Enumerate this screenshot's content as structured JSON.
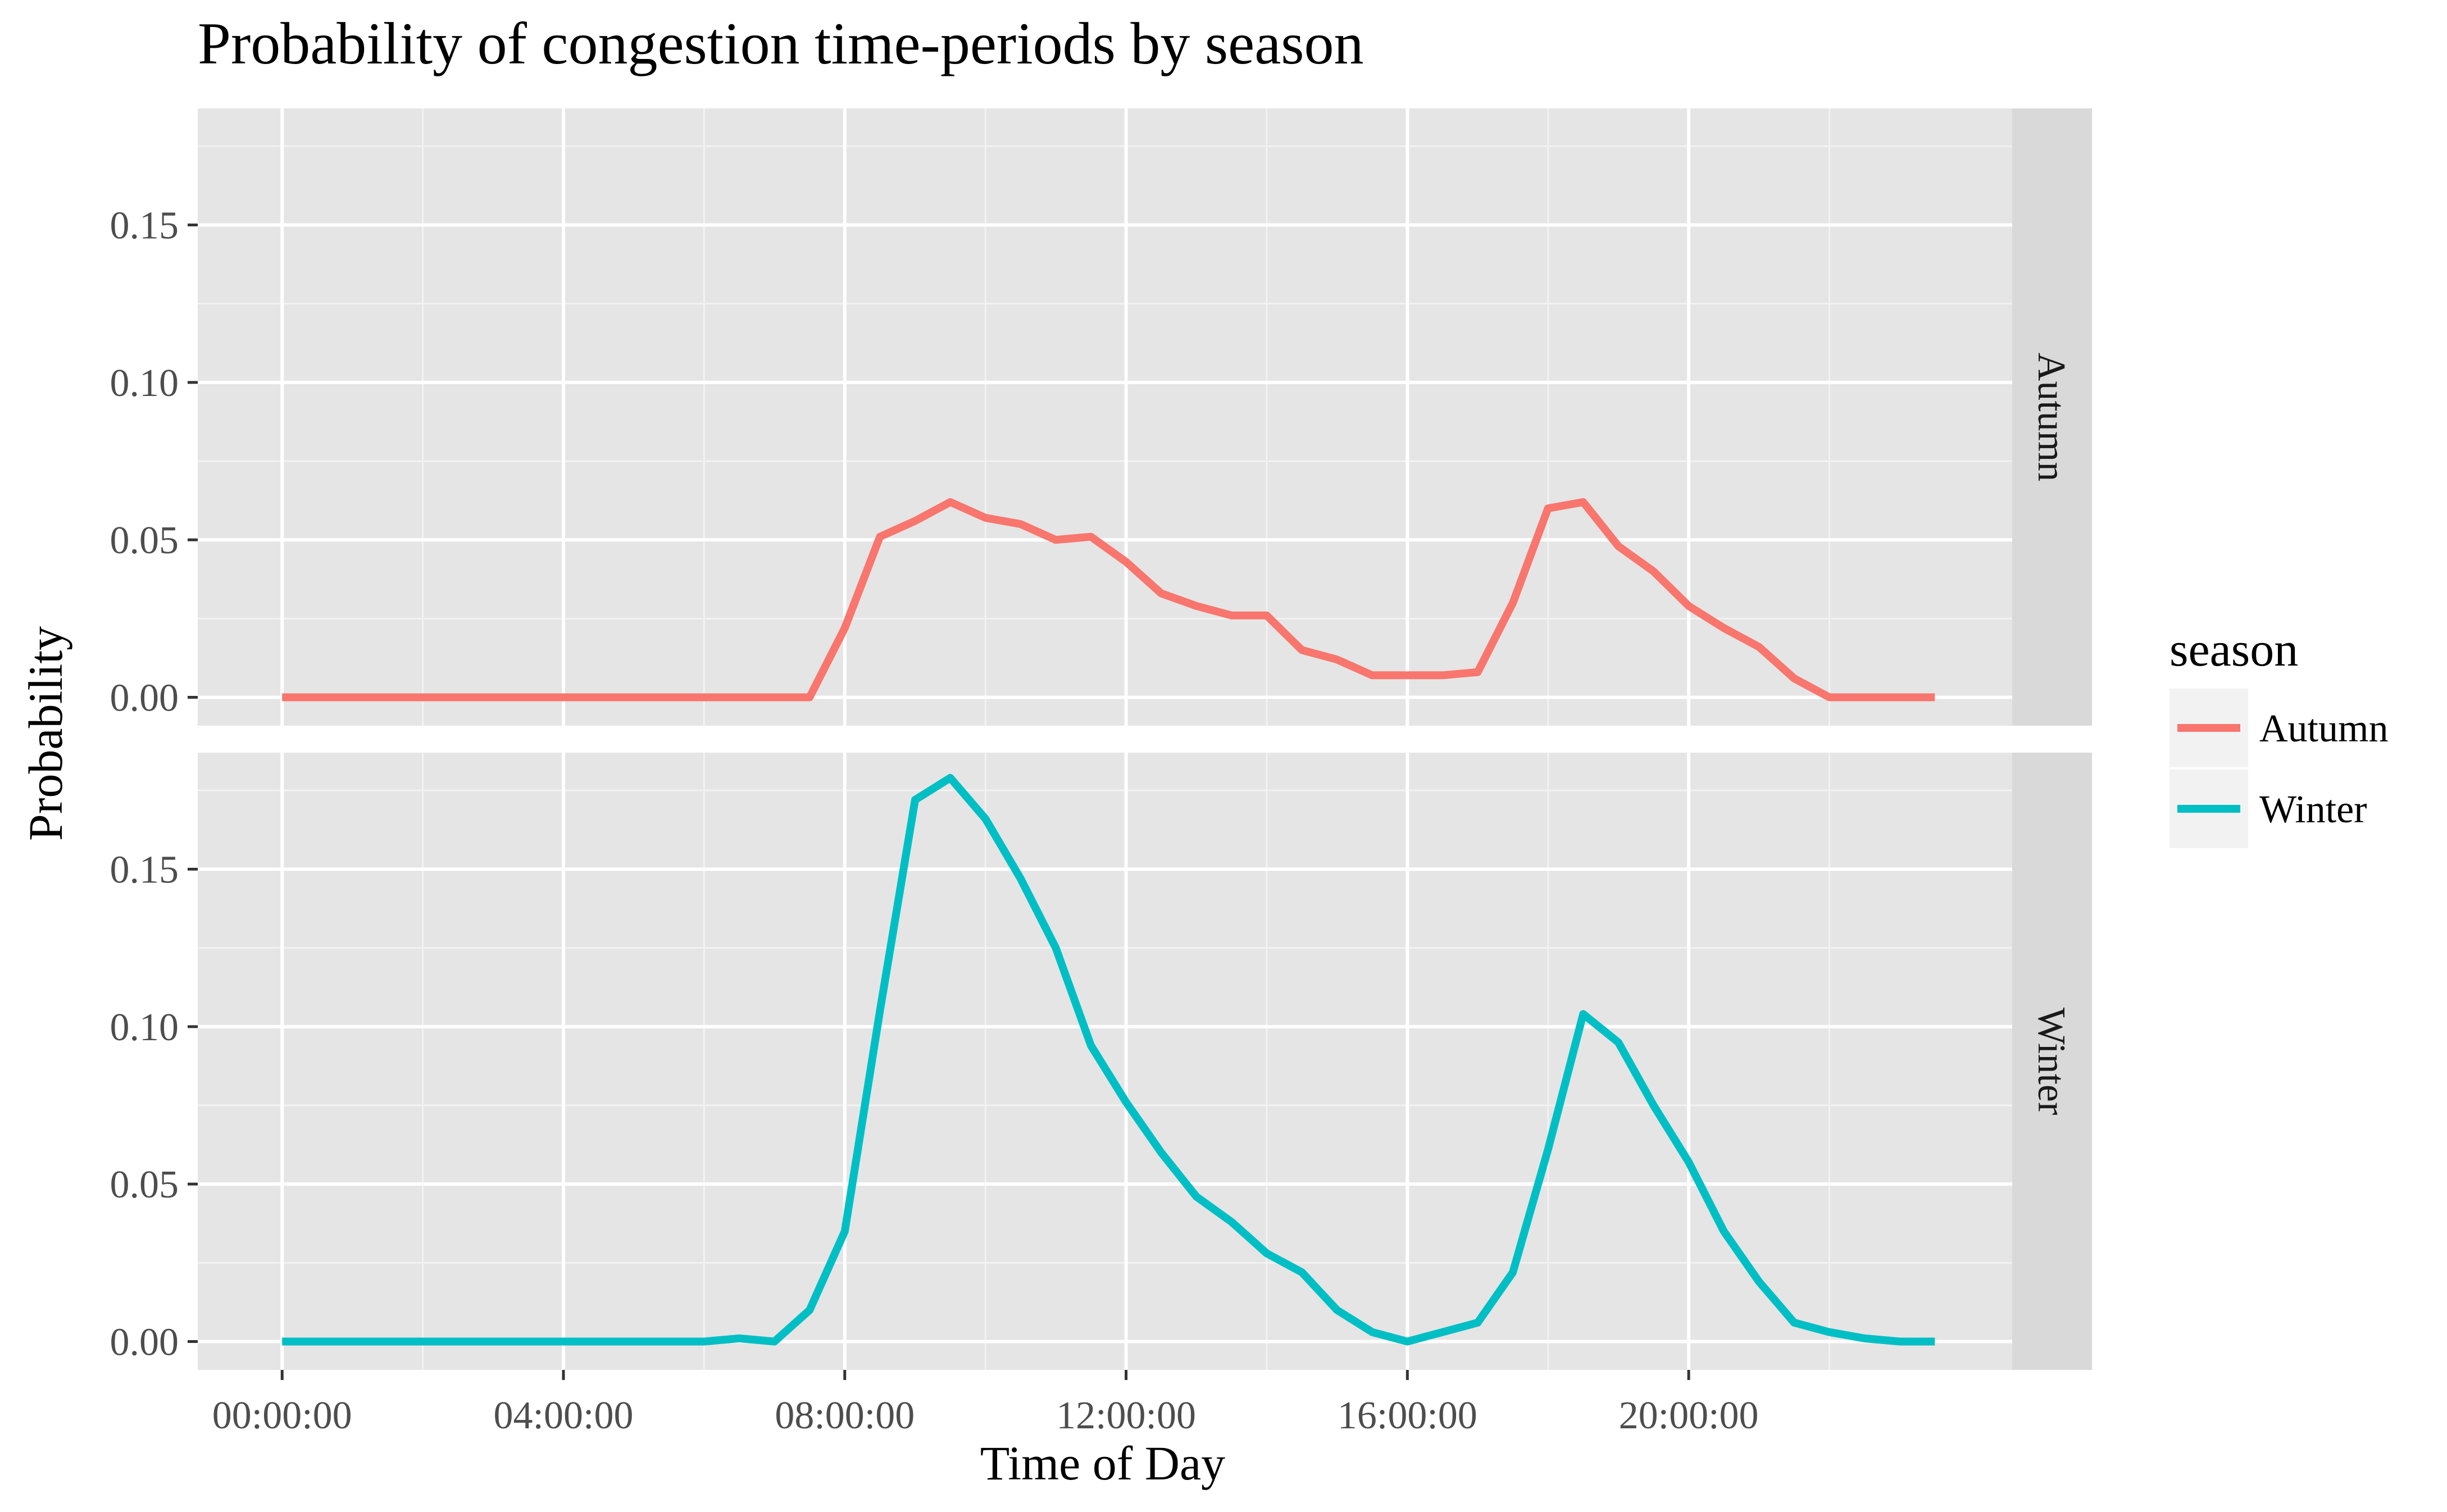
{
  "chart_data": {
    "type": "line",
    "title": "Probability of congestion time-periods by season",
    "xlabel": "Time of Day",
    "ylabel": "Probability",
    "x_tick_labels": [
      "00:00:00",
      "04:00:00",
      "08:00:00",
      "12:00:00",
      "16:00:00",
      "20:00:00"
    ],
    "x_ticks_hours": [
      0,
      4,
      8,
      12,
      16,
      20
    ],
    "y_tick_labels": [
      "0.00",
      "0.05",
      "0.10",
      "0.15"
    ],
    "y_ticks": [
      0,
      0.05,
      0.1,
      0.15
    ],
    "xlim_hours": [
      -1.2,
      24.6
    ],
    "ylim": [
      -0.009,
      0.187
    ],
    "grid": true,
    "legend_title": "season",
    "legend_position": "right",
    "facets": [
      {
        "name": "Autumn",
        "color": "#F8766D"
      },
      {
        "name": "Winter",
        "color": "#00BFC4"
      }
    ],
    "x_hours": [
      0,
      0.5,
      1,
      1.5,
      2,
      2.5,
      3,
      3.5,
      4,
      4.5,
      5,
      5.5,
      6,
      6.5,
      7,
      7.5,
      8,
      8.5,
      9,
      9.5,
      10,
      10.5,
      11,
      11.5,
      12,
      12.5,
      13,
      13.5,
      14,
      14.5,
      15,
      15.5,
      16,
      16.5,
      17,
      17.5,
      18,
      18.5,
      19,
      19.5,
      20,
      20.5,
      21,
      21.5,
      22,
      22.5,
      23,
      23.5
    ],
    "series": [
      {
        "name": "Autumn",
        "values": [
          0,
          0,
          0,
          0,
          0,
          0,
          0,
          0,
          0,
          0,
          0,
          0,
          0,
          0,
          0,
          0,
          0.022,
          0.051,
          0.056,
          0.062,
          0.057,
          0.055,
          0.05,
          0.051,
          0.043,
          0.033,
          0.029,
          0.026,
          0.026,
          0.015,
          0.012,
          0.007,
          0.007,
          0.007,
          0.008,
          0.03,
          0.06,
          0.062,
          0.048,
          0.04,
          0.029,
          0.022,
          0.016,
          0.006,
          0,
          0,
          0,
          0
        ]
      },
      {
        "name": "Winter",
        "values": [
          0,
          0,
          0,
          0,
          0,
          0,
          0,
          0,
          0,
          0,
          0,
          0,
          0,
          0.001,
          0,
          0.01,
          0.035,
          0.105,
          0.172,
          0.179,
          0.166,
          0.147,
          0.125,
          0.094,
          0.076,
          0.06,
          0.046,
          0.038,
          0.028,
          0.022,
          0.01,
          0.003,
          0,
          0.003,
          0.006,
          0.022,
          0.061,
          0.104,
          0.095,
          0.075,
          0.057,
          0.035,
          0.019,
          0.006,
          0.003,
          0.001,
          0,
          0
        ]
      }
    ]
  }
}
